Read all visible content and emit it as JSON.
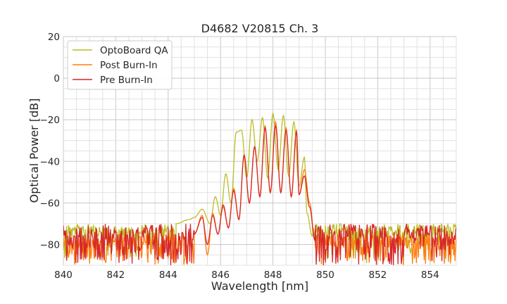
{
  "chart_data": {
    "type": "line",
    "title": "D4682 V20815 Ch. 3",
    "xlabel": "Wavelength [nm]",
    "ylabel": "Optical Power [dB]",
    "xlim": [
      840,
      855
    ],
    "ylim": [
      -90,
      20
    ],
    "xticks": [
      "840",
      "842",
      "844",
      "846",
      "848",
      "850",
      "852",
      "854"
    ],
    "yticks": [
      "20",
      "0",
      "−20",
      "−40",
      "−60",
      "−80"
    ],
    "grid": true,
    "legend": "top-left",
    "series": [
      {
        "name": "OptoBoard QA",
        "color": "#bcbd22",
        "noise_floor": -73,
        "noise_span": [
          -90,
          -70
        ],
        "x": [
          844.3,
          844.8,
          845.0,
          845.3,
          845.6,
          845.8,
          846.0,
          846.2,
          846.4,
          846.6,
          846.8,
          847.0,
          847.2,
          847.4,
          847.6,
          847.8,
          848.0,
          848.2,
          848.4,
          848.6,
          848.8,
          849.0,
          849.2,
          849.3,
          849.5
        ],
        "y": [
          -70,
          -68,
          -67,
          -63,
          -70,
          -57,
          -66,
          -46,
          -60,
          -26,
          -25,
          -48,
          -20,
          -40,
          -19,
          -48,
          -17,
          -44,
          -18,
          -47,
          -21,
          -52,
          -38,
          -65,
          -76
        ]
      },
      {
        "name": "Post Burn-In",
        "color": "#ff7f0e",
        "noise_floor": -90,
        "noise_span": [
          -90,
          -75
        ],
        "x": [
          845.0,
          845.3,
          845.5,
          845.7,
          845.9,
          846.1,
          846.3,
          846.5,
          846.7,
          846.9,
          847.1,
          847.3,
          847.5,
          847.7,
          847.9,
          848.1,
          848.3,
          848.5,
          848.7,
          848.9,
          849.0,
          849.2,
          849.4,
          849.6
        ],
        "y": [
          -75,
          -66,
          -85,
          -65,
          -75,
          -62,
          -72,
          -53,
          -68,
          -37,
          -60,
          -33,
          -57,
          -23,
          -55,
          -21,
          -55,
          -24,
          -57,
          -25,
          -56,
          -44,
          -60,
          -78
        ]
      },
      {
        "name": "Pre Burn-In",
        "color": "#d62728",
        "noise_floor": -90,
        "noise_span": [
          -90,
          -70
        ],
        "x": [
          845.0,
          845.3,
          845.5,
          845.7,
          845.9,
          846.1,
          846.3,
          846.5,
          846.7,
          846.9,
          847.1,
          847.3,
          847.5,
          847.7,
          847.9,
          848.1,
          848.3,
          848.5,
          848.7,
          848.9,
          849.0,
          849.2,
          849.4,
          849.6
        ],
        "y": [
          -75,
          -67,
          -80,
          -66,
          -75,
          -61,
          -72,
          -54,
          -68,
          -37,
          -60,
          -33,
          -57,
          -24,
          -55,
          -23,
          -55,
          -25,
          -57,
          -26,
          -56,
          -47,
          -62,
          -78
        ]
      }
    ]
  }
}
